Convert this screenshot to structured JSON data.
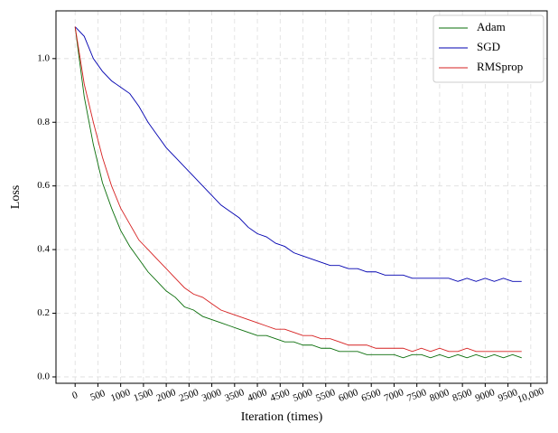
{
  "chart_data": {
    "type": "line",
    "xlabel": "Iteration (times)",
    "ylabel": "Loss",
    "x": [
      0,
      200,
      400,
      600,
      800,
      1000,
      1200,
      1400,
      1600,
      1800,
      2000,
      2200,
      2400,
      2600,
      2800,
      3000,
      3200,
      3400,
      3600,
      3800,
      4000,
      4200,
      4400,
      4600,
      4800,
      5000,
      5200,
      5400,
      5600,
      5800,
      6000,
      6200,
      6400,
      6600,
      6800,
      7000,
      7200,
      7400,
      7600,
      7800,
      8000,
      8200,
      8400,
      8600,
      8800,
      9000,
      9200,
      9400,
      9600,
      9800
    ],
    "series": [
      {
        "name": "Adam",
        "color": "#0a6e0a",
        "values": [
          1.1,
          0.88,
          0.73,
          0.61,
          0.53,
          0.46,
          0.41,
          0.37,
          0.33,
          0.3,
          0.27,
          0.25,
          0.22,
          0.21,
          0.19,
          0.18,
          0.17,
          0.16,
          0.15,
          0.14,
          0.13,
          0.13,
          0.12,
          0.11,
          0.11,
          0.1,
          0.1,
          0.09,
          0.09,
          0.08,
          0.08,
          0.08,
          0.07,
          0.07,
          0.07,
          0.07,
          0.06,
          0.07,
          0.07,
          0.06,
          0.07,
          0.06,
          0.07,
          0.06,
          0.07,
          0.06,
          0.07,
          0.06,
          0.07,
          0.06
        ]
      },
      {
        "name": "SGD",
        "color": "#0000b0",
        "values": [
          1.1,
          1.07,
          1.0,
          0.96,
          0.93,
          0.91,
          0.89,
          0.85,
          0.8,
          0.76,
          0.72,
          0.69,
          0.66,
          0.63,
          0.6,
          0.57,
          0.54,
          0.52,
          0.5,
          0.47,
          0.45,
          0.44,
          0.42,
          0.41,
          0.39,
          0.38,
          0.37,
          0.36,
          0.35,
          0.35,
          0.34,
          0.34,
          0.33,
          0.33,
          0.32,
          0.32,
          0.32,
          0.31,
          0.31,
          0.31,
          0.31,
          0.31,
          0.3,
          0.31,
          0.3,
          0.31,
          0.3,
          0.31,
          0.3,
          0.3
        ]
      },
      {
        "name": "RMSprop",
        "color": "#d62020",
        "values": [
          1.1,
          0.92,
          0.8,
          0.69,
          0.6,
          0.53,
          0.48,
          0.43,
          0.4,
          0.37,
          0.34,
          0.31,
          0.28,
          0.26,
          0.25,
          0.23,
          0.21,
          0.2,
          0.19,
          0.18,
          0.17,
          0.16,
          0.15,
          0.15,
          0.14,
          0.13,
          0.13,
          0.12,
          0.12,
          0.11,
          0.1,
          0.1,
          0.1,
          0.09,
          0.09,
          0.09,
          0.09,
          0.08,
          0.09,
          0.08,
          0.09,
          0.08,
          0.08,
          0.09,
          0.08,
          0.08,
          0.08,
          0.08,
          0.08,
          0.08
        ]
      }
    ],
    "xlim": [
      -420,
      10360
    ],
    "ylim": [
      -0.02,
      1.15
    ],
    "xticks": [
      0,
      500,
      1000,
      1500,
      2000,
      2500,
      3000,
      3500,
      4000,
      4500,
      5000,
      5500,
      6000,
      6500,
      7000,
      7500,
      8000,
      8500,
      9000,
      9500,
      {
        "value": 10000,
        "label": "10,000"
      }
    ],
    "yticks": [
      {
        "value": 0,
        "label": "0.0"
      },
      0.2,
      0.4,
      0.6,
      0.8,
      {
        "value": 1,
        "label": "1.0"
      }
    ],
    "grid": true,
    "legend": "upper right"
  }
}
